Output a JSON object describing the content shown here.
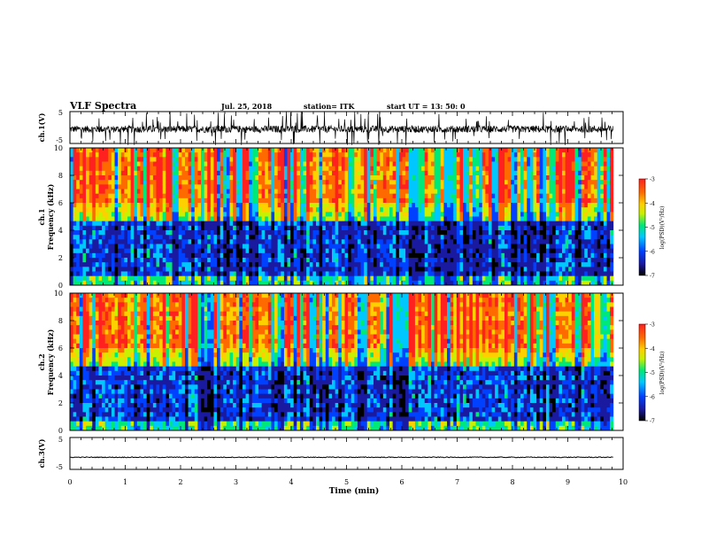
{
  "header": {
    "title": "VLF Spectra",
    "date": "Jul. 25, 2018",
    "station": "station= ITK",
    "start_ut": "start UT = 13: 50: 0"
  },
  "colors": {
    "colormap": [
      "#000000",
      "#1a1aa0",
      "#0040ff",
      "#00c8ff",
      "#00e878",
      "#c8f000",
      "#ffd000",
      "#ff6a00",
      "#ff2020"
    ],
    "trace": "#000000",
    "axis": "#000000"
  },
  "chart_data": [
    {
      "type": "line",
      "ylabel": "ch.1(V)",
      "ylim": [
        -5,
        5
      ],
      "y_ticks": [
        "5",
        "-5"
      ],
      "xlim": [
        0,
        10
      ],
      "description_values": {
        "baseline": -0.5,
        "spike_min": -5.5,
        "spike_max": 5
      }
    },
    {
      "type": "heatmap",
      "ylabel_channel": "ch.1",
      "ylabel": "Frequency (kHz)",
      "ylim": [
        0,
        10
      ],
      "y_ticks": [
        "0",
        "2",
        "4",
        "6",
        "8",
        "10"
      ],
      "xlim": [
        0,
        10
      ],
      "colorbar": {
        "label": "log(PSD)(V²/Hz)",
        "range": [
          -7,
          -3
        ],
        "ticks": [
          "-3",
          "-4",
          "-5",
          "-6",
          "-7"
        ]
      }
    },
    {
      "type": "heatmap",
      "ylabel_channel": "ch.2",
      "ylabel": "Frequency (kHz)",
      "ylim": [
        0,
        10
      ],
      "y_ticks": [
        "0",
        "2",
        "4",
        "6",
        "8",
        "10"
      ],
      "xlim": [
        0,
        10
      ],
      "colorbar": {
        "label": "log(PSD)(V²/Hz)",
        "range": [
          -7,
          -3
        ],
        "ticks": [
          "-3",
          "-4",
          "-5",
          "-6",
          "-7"
        ]
      }
    },
    {
      "type": "line",
      "ylabel": "ch.3(V)",
      "ylim": [
        -5,
        5
      ],
      "y_ticks": [
        "5",
        "-5"
      ],
      "xlim": [
        0,
        10
      ],
      "description_values": {
        "baseline": -1.2
      }
    }
  ],
  "x_axis": {
    "label": "Time (min)",
    "ticks": [
      "0",
      "1",
      "2",
      "3",
      "4",
      "5",
      "6",
      "7",
      "8",
      "9",
      "10"
    ],
    "xlim": [
      0,
      10
    ],
    "data_end": 9.82
  }
}
